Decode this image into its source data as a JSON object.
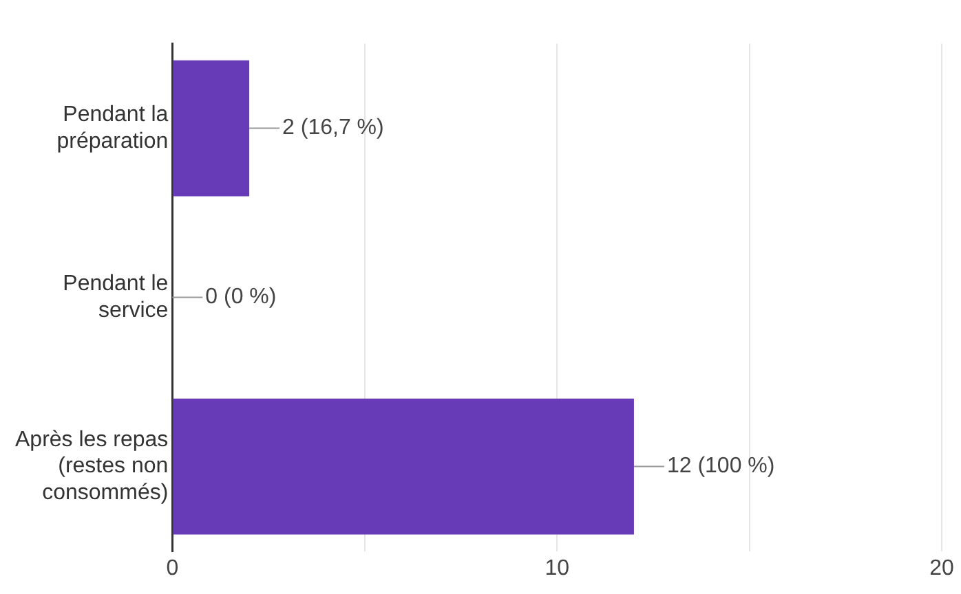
{
  "chart_data": {
    "type": "bar",
    "orientation": "horizontal",
    "categories": [
      "Pendant la préparation",
      "Pendant le service",
      "Après les repas (restes non consommés)"
    ],
    "values": [
      2,
      0,
      12
    ],
    "color": "#673ab7",
    "value_labels": [
      "2 (16,7 %)",
      "0 (0 %)",
      "12 (100 %)"
    ],
    "xlim": [
      0,
      20
    ],
    "xticks": [
      0,
      {
        "value": 5,
        "label": null
      },
      10,
      {
        "value": 15,
        "label": null
      },
      20
    ],
    "grid": "x",
    "legend": false
  }
}
